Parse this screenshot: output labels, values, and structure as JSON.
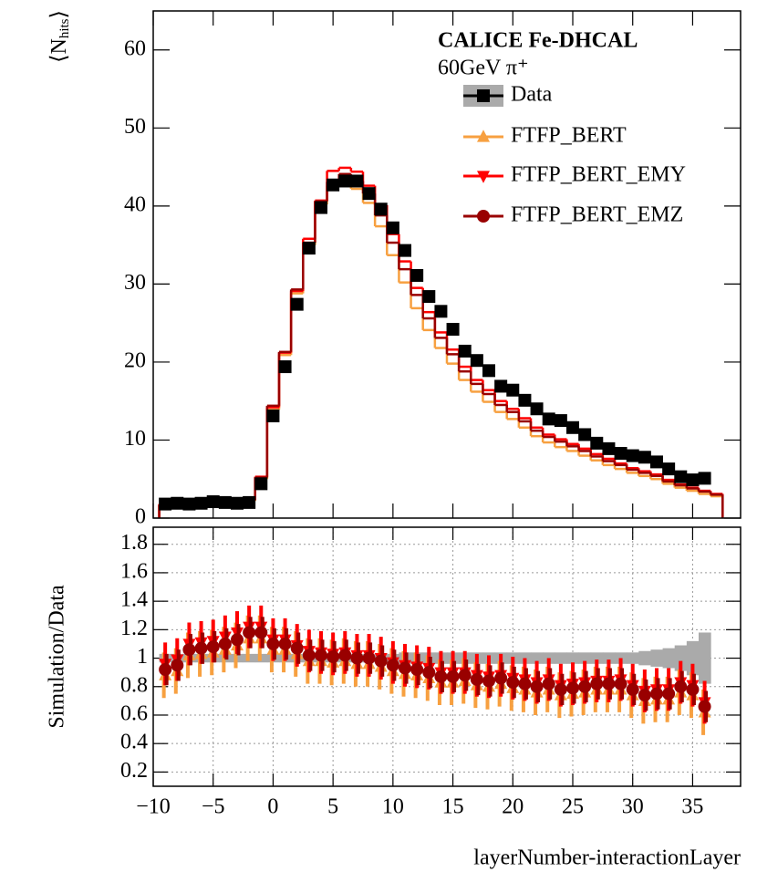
{
  "chart_data": [
    {
      "type": "step",
      "annotations": [
        "CALICE Fe-DHCAL",
        "60GeV π⁺"
      ],
      "ylabel": {
        "open": "⟨N",
        "sub": "hits",
        "close": "⟩"
      },
      "x": [
        -9,
        -8,
        -7,
        -6,
        -5,
        -4,
        -3,
        -2,
        -1,
        0,
        1,
        2,
        3,
        4,
        5,
        6,
        7,
        8,
        9,
        10,
        11,
        12,
        13,
        14,
        15,
        16,
        17,
        18,
        19,
        20,
        21,
        22,
        23,
        24,
        25,
        26,
        27,
        28,
        29,
        30,
        31,
        32,
        33,
        34,
        35,
        36,
        37
      ],
      "xlim": [
        -10,
        39
      ],
      "ylim": [
        0,
        65
      ],
      "yticks": [
        0,
        10,
        20,
        30,
        40,
        50,
        60
      ],
      "series": [
        {
          "name": "Data",
          "color": "#000000",
          "marker": "square",
          "values": [
            1.8,
            1.9,
            1.8,
            1.9,
            2.1,
            2.0,
            1.9,
            2.0,
            4.4,
            13.1,
            19.4,
            27.4,
            34.6,
            39.8,
            42.7,
            43.2,
            43.2,
            41.6,
            39.6,
            37.2,
            34.3,
            31.1,
            28.4,
            26.5,
            24.2,
            21.4,
            20.2,
            18.9,
            16.9,
            16.4,
            15.1,
            14.0,
            12.7,
            12.5,
            11.6,
            10.7,
            9.6,
            8.9,
            8.3,
            8.0,
            7.8,
            7.2,
            6.3,
            5.3,
            4.9,
            5.1,
            null
          ]
        },
        {
          "name": "FTFP_BERT",
          "color": "#f7a040",
          "marker": "triangle-up",
          "values": [
            1.6,
            1.7,
            1.8,
            1.9,
            2.2,
            2.1,
            2.0,
            2.2,
            5.0,
            13.9,
            20.9,
            28.8,
            35.0,
            40.2,
            42.6,
            43.0,
            42.2,
            40.4,
            37.4,
            33.7,
            30.2,
            26.9,
            24.1,
            21.8,
            19.8,
            17.7,
            16.2,
            14.9,
            13.6,
            12.7,
            11.6,
            10.5,
            9.7,
            9.1,
            8.6,
            8.0,
            7.4,
            6.8,
            6.3,
            5.8,
            5.4,
            5.0,
            4.4,
            3.9,
            3.5,
            3.1,
            2.8
          ]
        },
        {
          "name": "FTFP_BERT_EMY",
          "color": "#ff0000",
          "marker": "triangle-down",
          "values": [
            1.8,
            1.9,
            2.0,
            2.1,
            2.4,
            2.3,
            2.2,
            2.4,
            5.3,
            14.2,
            21.2,
            29.1,
            35.8,
            40.7,
            44.5,
            44.9,
            44.4,
            42.6,
            40.1,
            36.4,
            32.9,
            29.5,
            26.4,
            23.8,
            21.6,
            19.4,
            17.7,
            16.4,
            15.0,
            14.0,
            12.8,
            11.6,
            10.7,
            10.1,
            9.5,
            8.9,
            8.2,
            7.6,
            7.0,
            6.4,
            6.0,
            5.6,
            4.9,
            4.3,
            3.9,
            3.5,
            3.1
          ]
        },
        {
          "name": "FTFP_BERT_EMZ",
          "color": "#990000",
          "marker": "circle",
          "values": [
            1.7,
            1.8,
            1.9,
            2.0,
            2.3,
            2.2,
            2.1,
            2.3,
            5.2,
            14.4,
            21.3,
            29.3,
            35.3,
            40.6,
            43.1,
            44.1,
            43.2,
            41.6,
            38.8,
            35.3,
            31.9,
            28.6,
            25.6,
            23.1,
            21.0,
            18.8,
            17.2,
            15.9,
            14.5,
            13.6,
            12.4,
            11.2,
            10.4,
            9.8,
            9.2,
            8.6,
            7.9,
            7.3,
            6.8,
            6.2,
            5.8,
            5.4,
            4.7,
            4.2,
            3.8,
            3.4,
            3.0
          ]
        }
      ]
    },
    {
      "type": "ratio",
      "xlabel": "layerNumber-interactionLayer",
      "ylabel": "Simulation/Data",
      "grid": true,
      "x": [
        -9,
        -8,
        -7,
        -6,
        -5,
        -4,
        -3,
        -2,
        -1,
        0,
        1,
        2,
        3,
        4,
        5,
        6,
        7,
        8,
        9,
        10,
        11,
        12,
        13,
        14,
        15,
        16,
        17,
        18,
        19,
        20,
        21,
        22,
        23,
        24,
        25,
        26,
        27,
        28,
        29,
        30,
        31,
        32,
        33,
        34,
        35,
        36
      ],
      "xlim": [
        -10,
        39
      ],
      "ylim": [
        0.1,
        1.92
      ],
      "xticks": [
        {
          "value": -10,
          "label": "−10"
        },
        {
          "value": -5,
          "label": "−5"
        },
        0,
        5,
        10,
        15,
        20,
        25,
        30,
        35
      ],
      "yticks": [
        0.2,
        0.4,
        0.6,
        0.8,
        1,
        1.2,
        1.4,
        1.6,
        1.8
      ],
      "band": [
        0.03,
        0.03,
        0.03,
        0.03,
        0.03,
        0.03,
        0.03,
        0.03,
        0.03,
        0.03,
        0.03,
        0.03,
        0.03,
        0.03,
        0.03,
        0.03,
        0.03,
        0.03,
        0.03,
        0.03,
        0.04,
        0.04,
        0.04,
        0.04,
        0.04,
        0.04,
        0.04,
        0.04,
        0.04,
        0.04,
        0.04,
        0.04,
        0.04,
        0.04,
        0.04,
        0.04,
        0.04,
        0.04,
        0.04,
        0.04,
        0.05,
        0.06,
        0.07,
        0.09,
        0.12,
        0.18
      ],
      "series": [
        {
          "error": 0.16,
          "values": [
            0.88,
            0.91,
            1.02,
            1.03,
            1.04,
            1.06,
            1.09,
            1.14,
            1.14,
            1.06,
            1.06,
            1.03,
            0.98,
            0.98,
            0.97,
            0.98,
            0.96,
            0.96,
            0.94,
            0.91,
            0.89,
            0.88,
            0.86,
            0.83,
            0.83,
            0.84,
            0.81,
            0.8,
            0.82,
            0.79,
            0.78,
            0.76,
            0.78,
            0.74,
            0.75,
            0.76,
            0.78,
            0.78,
            0.78,
            0.74,
            0.7,
            0.71,
            0.71,
            0.76,
            0.74,
            0.62
          ]
        },
        {
          "error": 0.15,
          "values": [
            0.96,
            0.99,
            1.1,
            1.11,
            1.12,
            1.15,
            1.18,
            1.22,
            1.22,
            1.13,
            1.13,
            1.09,
            1.05,
            1.04,
            1.03,
            1.04,
            1.02,
            1.02,
            1.0,
            0.97,
            0.95,
            0.94,
            0.93,
            0.9,
            0.9,
            0.9,
            0.88,
            0.87,
            0.88,
            0.86,
            0.85,
            0.83,
            0.85,
            0.81,
            0.82,
            0.83,
            0.84,
            0.84,
            0.85,
            0.81,
            0.77,
            0.78,
            0.78,
            0.83,
            0.81,
            0.69
          ]
        },
        {
          "error": 0.11,
          "values": [
            0.92,
            0.95,
            1.06,
            1.07,
            1.08,
            1.1,
            1.13,
            1.18,
            1.18,
            1.1,
            1.1,
            1.07,
            1.02,
            1.02,
            1.01,
            1.02,
            1.0,
            1.0,
            0.98,
            0.95,
            0.93,
            0.92,
            0.9,
            0.87,
            0.87,
            0.88,
            0.85,
            0.84,
            0.86,
            0.83,
            0.82,
            0.8,
            0.82,
            0.78,
            0.79,
            0.8,
            0.82,
            0.82,
            0.82,
            0.78,
            0.74,
            0.75,
            0.75,
            0.8,
            0.78,
            0.66
          ]
        }
      ]
    }
  ]
}
